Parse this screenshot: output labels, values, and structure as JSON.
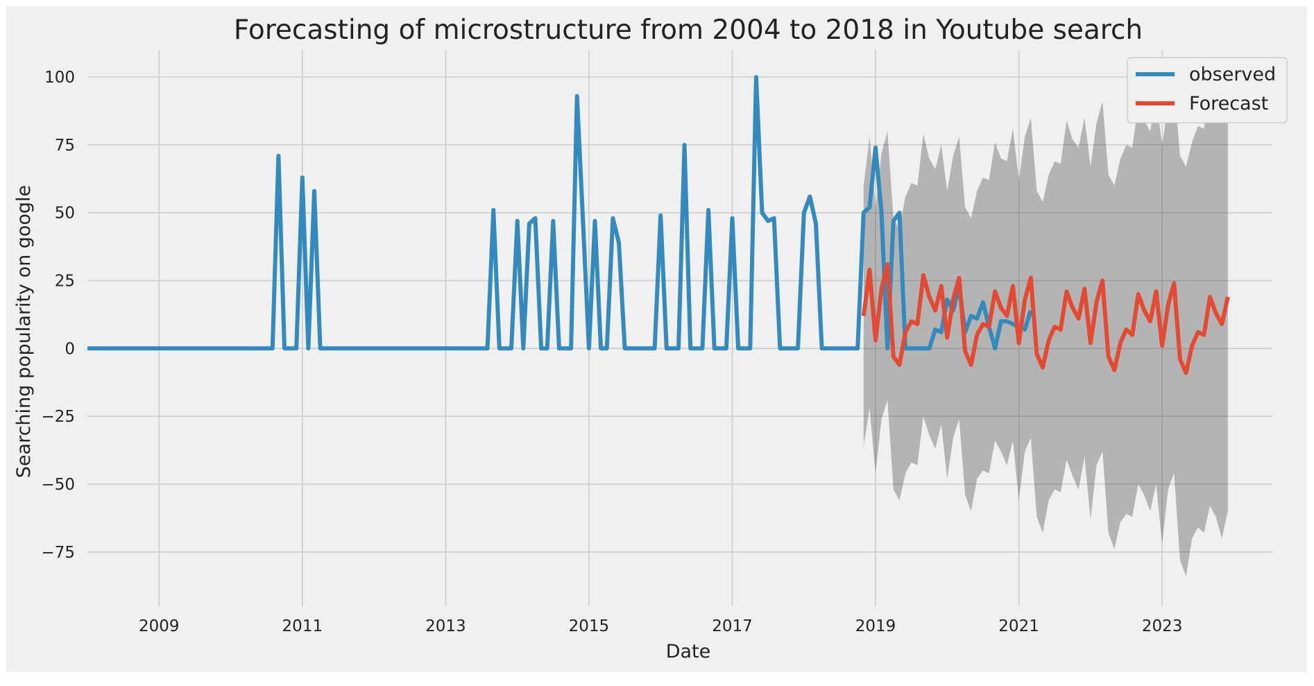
{
  "chart_data": {
    "type": "line",
    "title": "Forecasting of microstructure from 2004 to 2018 in Youtube search",
    "xlabel": "Date",
    "ylabel": "Searching popularity on google",
    "xlim": [
      "2008-01-01",
      "2024-07-15"
    ],
    "ylim": [
      -95,
      110
    ],
    "x_ticks": [
      "2009",
      "2011",
      "2013",
      "2015",
      "2017",
      "2019",
      "2021",
      "2023"
    ],
    "y_ticks": [
      100,
      75,
      50,
      25,
      0,
      -25,
      -50,
      -75
    ],
    "y_tick_labels": [
      "100",
      "75",
      "50",
      "25",
      "0",
      "−25",
      "−50",
      "−75"
    ],
    "grid": true,
    "legend_position": "top-right",
    "legend": [
      "observed",
      "Forecast"
    ],
    "series": [
      {
        "name": "observed",
        "color": "#348ABD",
        "start": "2008-01",
        "frequency": "monthly",
        "values": [
          0,
          0,
          0,
          0,
          0,
          0,
          0,
          0,
          0,
          0,
          0,
          0,
          0,
          0,
          0,
          0,
          0,
          0,
          0,
          0,
          0,
          0,
          0,
          0,
          0,
          0,
          0,
          0,
          0,
          0,
          0,
          0,
          71,
          0,
          0,
          0,
          63,
          0,
          58,
          0,
          0,
          0,
          0,
          0,
          0,
          0,
          0,
          0,
          0,
          0,
          0,
          0,
          0,
          0,
          0,
          0,
          0,
          0,
          0,
          0,
          0,
          0,
          0,
          0,
          0,
          0,
          0,
          0,
          51,
          0,
          0,
          0,
          47,
          0,
          46,
          48,
          0,
          0,
          47,
          0,
          0,
          0,
          93,
          47,
          0,
          47,
          0,
          0,
          48,
          39,
          0,
          0,
          0,
          0,
          0,
          0,
          49,
          0,
          0,
          0,
          75,
          0,
          0,
          0,
          51,
          0,
          0,
          0,
          48,
          0,
          0,
          0,
          100,
          50,
          47,
          48,
          0,
          0,
          0,
          0,
          50,
          56,
          46,
          0,
          0,
          0,
          0,
          0,
          0,
          0,
          50,
          52,
          74,
          50,
          0,
          47,
          50,
          0,
          0,
          0,
          0,
          0,
          7,
          6,
          18,
          14,
          23,
          6,
          12,
          11,
          17,
          8,
          0,
          10,
          10,
          9,
          8,
          7,
          14
        ]
      },
      {
        "name": "Forecast",
        "color": "#E24A33",
        "start": "2018-11",
        "frequency": "monthly",
        "values": [
          12,
          29,
          3,
          22,
          31,
          -3,
          -6,
          6,
          10,
          9,
          27,
          19,
          14,
          23,
          4,
          18,
          26,
          -1,
          -6,
          5,
          9,
          8,
          21,
          15,
          12,
          23,
          2,
          18,
          26,
          -2,
          -7,
          3,
          8,
          7,
          21,
          15,
          11,
          22,
          2,
          17,
          25,
          -3,
          -8,
          2,
          7,
          5,
          20,
          14,
          10,
          21,
          1,
          16,
          24,
          -4,
          -9,
          1,
          6,
          5,
          19,
          13,
          9,
          19
        ],
        "ci_lower": [
          -36,
          -22,
          -46,
          -26,
          -19,
          -52,
          -56,
          -46,
          -42,
          -43,
          -25,
          -32,
          -37,
          -28,
          -48,
          -33,
          -26,
          -54,
          -60,
          -48,
          -45,
          -46,
          -34,
          -38,
          -43,
          -34,
          -56,
          -38,
          -33,
          -62,
          -68,
          -56,
          -52,
          -53,
          -41,
          -47,
          -52,
          -40,
          -63,
          -43,
          -38,
          -68,
          -74,
          -64,
          -61,
          -62,
          -50,
          -54,
          -60,
          -50,
          -72,
          -52,
          -46,
          -78,
          -84,
          -70,
          -66,
          -68,
          -58,
          -62,
          -70,
          -60
        ],
        "ci_upper": [
          60,
          78,
          52,
          72,
          80,
          48,
          44,
          56,
          61,
          60,
          79,
          70,
          66,
          75,
          58,
          71,
          78,
          52,
          48,
          58,
          63,
          62,
          76,
          70,
          69,
          81,
          62,
          78,
          85,
          58,
          54,
          64,
          69,
          68,
          84,
          77,
          74,
          85,
          67,
          83,
          91,
          64,
          60,
          70,
          75,
          74,
          90,
          84,
          80,
          92,
          75,
          90,
          98,
          71,
          67,
          76,
          82,
          81,
          97,
          90,
          88,
          97
        ]
      }
    ]
  }
}
